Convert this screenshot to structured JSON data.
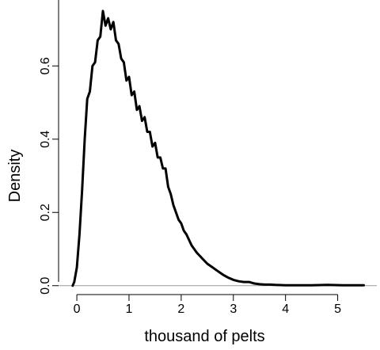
{
  "chart_data": {
    "type": "line",
    "title": "",
    "xlabel": "thousand of pelts",
    "ylabel": "Density",
    "xlim": [
      -0.35,
      5.75
    ],
    "ylim": [
      -0.02,
      0.78
    ],
    "xticks": [
      0,
      1,
      2,
      3,
      4,
      5
    ],
    "xtick_labels": [
      "0",
      "1",
      "2",
      "3",
      "4",
      "5"
    ],
    "yticks": [
      0.0,
      0.2,
      0.4,
      0.6
    ],
    "ytick_labels": [
      "0.0",
      "0.2",
      "0.4",
      "0.6"
    ],
    "baseline": 0,
    "grid": false,
    "series": [
      {
        "color": "#000000",
        "x": [
          -0.08,
          -0.05,
          0.0,
          0.05,
          0.1,
          0.15,
          0.2,
          0.25,
          0.3,
          0.35,
          0.4,
          0.45,
          0.5,
          0.55,
          0.6,
          0.65,
          0.7,
          0.75,
          0.8,
          0.85,
          0.9,
          0.95,
          1.0,
          1.05,
          1.1,
          1.15,
          1.2,
          1.25,
          1.3,
          1.35,
          1.4,
          1.45,
          1.5,
          1.55,
          1.6,
          1.65,
          1.7,
          1.75,
          1.8,
          1.85,
          1.9,
          1.95,
          2.0,
          2.05,
          2.1,
          2.2,
          2.3,
          2.4,
          2.5,
          2.6,
          2.7,
          2.8,
          2.9,
          3.0,
          3.1,
          3.2,
          3.3,
          3.4,
          3.5,
          3.6,
          3.7,
          3.8,
          4.0,
          4.2,
          4.5,
          4.8,
          5.1,
          5.5
        ],
        "y": [
          0.0,
          0.01,
          0.05,
          0.14,
          0.26,
          0.4,
          0.51,
          0.53,
          0.6,
          0.61,
          0.67,
          0.68,
          0.75,
          0.71,
          0.73,
          0.7,
          0.72,
          0.67,
          0.66,
          0.62,
          0.61,
          0.56,
          0.57,
          0.52,
          0.53,
          0.48,
          0.49,
          0.45,
          0.46,
          0.42,
          0.42,
          0.38,
          0.39,
          0.35,
          0.35,
          0.32,
          0.32,
          0.27,
          0.25,
          0.22,
          0.2,
          0.18,
          0.17,
          0.15,
          0.14,
          0.11,
          0.09,
          0.075,
          0.06,
          0.05,
          0.04,
          0.03,
          0.022,
          0.016,
          0.012,
          0.01,
          0.01,
          0.006,
          0.004,
          0.003,
          0.003,
          0.002,
          0.001,
          0.001,
          0.001,
          0.002,
          0.001,
          0.001
        ]
      }
    ]
  }
}
